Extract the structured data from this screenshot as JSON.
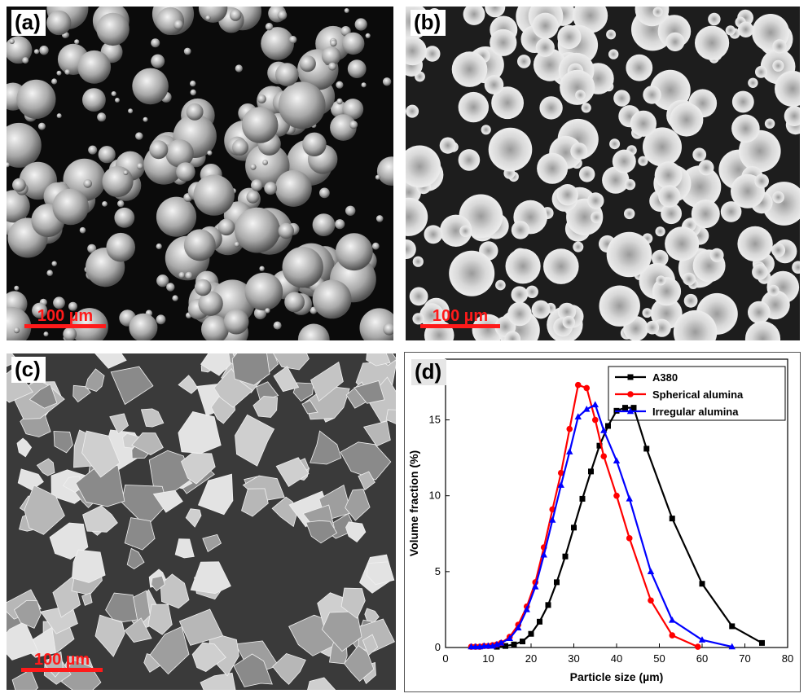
{
  "panels": {
    "a": {
      "label": "(a)",
      "scale_bar": "100 µm"
    },
    "b": {
      "label": "(b)",
      "scale_bar": "100 µm"
    },
    "c": {
      "label": "(c)",
      "scale_bar": "100 µm"
    },
    "d": {
      "label": "(d)"
    }
  },
  "colors": {
    "A380": "#000000",
    "Spherical alumina": "#ff0000",
    "Irregular alumina": "#0000ff",
    "scale_bar": "#ff1a1a"
  },
  "chart_data": {
    "type": "line",
    "title": "",
    "xlabel": "Particle size (µm)",
    "ylabel": "Volume fraction (%)",
    "xlim": [
      0,
      80
    ],
    "ylim": [
      0,
      19
    ],
    "xticks": [
      0,
      10,
      20,
      30,
      40,
      50,
      60,
      70,
      80
    ],
    "yticks": [
      0,
      5,
      10,
      15
    ],
    "grid": false,
    "legend_position": "top-right",
    "series": [
      {
        "name": "A380",
        "color": "#000000",
        "marker": "square",
        "x": [
          12,
          14,
          16,
          18,
          20,
          22,
          24,
          26,
          28,
          30,
          32,
          34,
          36,
          38,
          40,
          42,
          44,
          47,
          53,
          60,
          67,
          74
        ],
        "y": [
          0.05,
          0.1,
          0.2,
          0.4,
          0.9,
          1.7,
          2.8,
          4.3,
          6.0,
          7.9,
          9.8,
          11.6,
          13.3,
          14.6,
          15.6,
          15.8,
          15.8,
          13.1,
          8.5,
          4.2,
          1.4,
          0.3
        ]
      },
      {
        "name": "Spherical alumina",
        "color": "#ff0000",
        "marker": "circle",
        "x": [
          6,
          7,
          8,
          9,
          10,
          11,
          12,
          13,
          15,
          17,
          19,
          21,
          23,
          25,
          27,
          29,
          31,
          33,
          35,
          37,
          40,
          43,
          48,
          53,
          59
        ],
        "y": [
          0.05,
          0.05,
          0.05,
          0.1,
          0.1,
          0.15,
          0.2,
          0.3,
          0.7,
          1.5,
          2.7,
          4.3,
          6.6,
          9.1,
          11.5,
          14.4,
          17.3,
          17.1,
          15.0,
          12.6,
          10.0,
          7.2,
          3.1,
          0.8,
          0.05
        ]
      },
      {
        "name": "Irregular alumina",
        "color": "#0000ff",
        "marker": "triangle",
        "x": [
          6,
          7,
          8,
          9,
          10,
          11,
          12,
          13,
          15,
          17,
          19,
          21,
          23,
          25,
          27,
          29,
          31,
          33,
          35,
          37,
          40,
          43,
          48,
          53,
          60,
          67
        ],
        "y": [
          0.05,
          0.05,
          0.05,
          0.1,
          0.1,
          0.1,
          0.2,
          0.3,
          0.6,
          1.3,
          2.5,
          4.0,
          6.1,
          8.4,
          10.7,
          12.9,
          15.2,
          15.7,
          16.0,
          14.3,
          12.3,
          9.8,
          5.0,
          1.8,
          0.5,
          0.05
        ]
      }
    ]
  }
}
